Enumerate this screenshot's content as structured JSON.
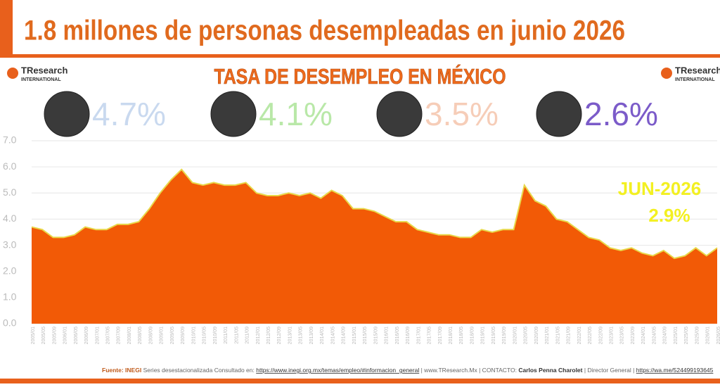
{
  "chart_data": {
    "type": "area",
    "headline": "1.8 millones de personas desempleadas en junio 2026",
    "title": "TASA DE DESEMPLEO EN MÉXICO",
    "logo": {
      "name": "TResearch",
      "sub": "INTERNATIONAL"
    },
    "presidents": [
      {
        "text": "4.7%",
        "color": "#c9d9ef"
      },
      {
        "text": "4.1%",
        "color": "#b9e8a8"
      },
      {
        "text": "3.5%",
        "color": "#f6cdb8"
      },
      {
        "text": "2.6%",
        "color": "#7b5bc9"
      }
    ],
    "annotations": [
      {
        "text": "JUN-2026"
      },
      {
        "text": "2.9%"
      }
    ],
    "annotation_color": "#f3f021",
    "categories": [
      "2005/01",
      "2005/05",
      "2005/09",
      "2006/01",
      "2006/05",
      "2006/09",
      "2007/01",
      "2007/05",
      "2007/09",
      "2008/01",
      "2008/05",
      "2008/09",
      "2009/01",
      "2009/05",
      "2009/09",
      "2010/01",
      "2010/05",
      "2010/09",
      "2011/01",
      "2011/05",
      "2011/09",
      "2012/01",
      "2012/05",
      "2012/09",
      "2013/01",
      "2013/05",
      "2013/09",
      "2014/01",
      "2014/05",
      "2014/09",
      "2015/01",
      "2015/05",
      "2015/09",
      "2016/01",
      "2016/05",
      "2016/09",
      "2017/01",
      "2017/05",
      "2017/09",
      "2018/01",
      "2018/05",
      "2018/09",
      "2019/01",
      "2019/05",
      "2019/09",
      "2020/01",
      "2020/05",
      "2020/09",
      "2021/01",
      "2021/05",
      "2021/09",
      "2022/01",
      "2022/05",
      "2022/09",
      "2023/01",
      "2023/05",
      "2023/09",
      "2024/01",
      "2024/05",
      "2024/09",
      "2025/01",
      "2025/05",
      "2025/09",
      "2026/01",
      "2026/05"
    ],
    "values": [
      3.7,
      3.6,
      3.3,
      3.3,
      3.4,
      3.7,
      3.6,
      3.6,
      3.8,
      3.8,
      3.9,
      4.4,
      5.0,
      5.5,
      5.9,
      5.4,
      5.3,
      5.4,
      5.3,
      5.3,
      5.4,
      5.0,
      4.9,
      4.9,
      5.0,
      4.9,
      5.0,
      4.8,
      5.1,
      4.9,
      4.4,
      4.4,
      4.3,
      4.1,
      3.9,
      3.9,
      3.6,
      3.5,
      3.4,
      3.4,
      3.3,
      3.3,
      3.6,
      3.5,
      3.6,
      3.6,
      5.3,
      4.7,
      4.5,
      4.0,
      3.9,
      3.6,
      3.3,
      3.2,
      2.9,
      2.8,
      2.9,
      2.7,
      2.6,
      2.8,
      2.5,
      2.6,
      2.9,
      2.6,
      2.9
    ],
    "color": "#f25a06",
    "line_color": "#e8d84a",
    "ylim": [
      0,
      7
    ],
    "yticks": [
      {
        "value": 0,
        "label": "0.0"
      },
      {
        "value": 1,
        "label": "1.0"
      },
      {
        "value": 2,
        "label": "2.0"
      },
      {
        "value": 3,
        "label": "3.0"
      },
      {
        "value": 4,
        "label": "4.0"
      },
      {
        "value": 5,
        "label": "5.0"
      },
      {
        "value": 6,
        "label": "6.0"
      },
      {
        "value": 7,
        "label": "7.0"
      }
    ],
    "grid": true,
    "source": {
      "label": "Fuente: INEGI",
      "text": "Series desestacionalizada Consultado en:",
      "url": "https://www.inegi.org.mx/temas/empleo/#informacion_general",
      "site": "| www.TResearch.Mx | CONTACTO:",
      "contact": "Carlos Penna Charolet",
      "role": "| Director General |",
      "phone": "https://wa.me/524499193645"
    }
  }
}
